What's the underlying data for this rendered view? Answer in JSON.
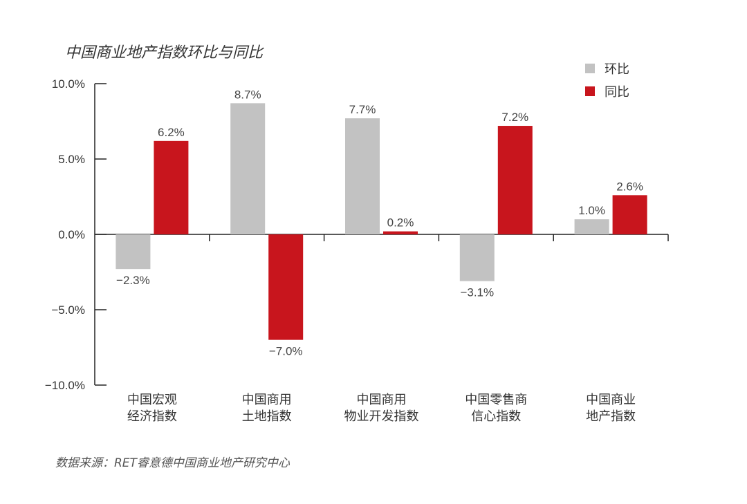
{
  "chart_data": {
    "type": "bar",
    "title": "中国商业地产指数环比与同比",
    "source": "数据来源：RET睿意德中国商业地产研究中心",
    "categories": [
      [
        "中国宏观",
        "经济指数"
      ],
      [
        "中国商用",
        "土地指数"
      ],
      [
        "中国商用",
        "物业开发指数"
      ],
      [
        "中国零售商",
        "信心指数"
      ],
      [
        "中国商业",
        "地产指数"
      ]
    ],
    "series": [
      {
        "name": "环比",
        "color": "#c2c2c2",
        "values": [
          -2.3,
          8.7,
          7.7,
          -3.1,
          1.0
        ],
        "labels": [
          "−2.3%",
          "8.7%",
          "7.7%",
          "−3.1%",
          "1.0%"
        ]
      },
      {
        "name": "同比",
        "color": "#c8151d",
        "values": [
          6.2,
          -7.0,
          0.2,
          7.2,
          2.6
        ],
        "labels": [
          "6.2%",
          "−7.0%",
          "0.2%",
          "7.2%",
          "2.6%"
        ]
      }
    ],
    "ylim": [
      -10,
      10
    ],
    "yticks": [
      10,
      5,
      0,
      -5,
      -10
    ],
    "ytick_labels": [
      "10.0%",
      "5.0%",
      "0.0%",
      "−5.0%",
      "−10.0%"
    ],
    "legend_position": "top-right",
    "xlabel": "",
    "ylabel": ""
  }
}
